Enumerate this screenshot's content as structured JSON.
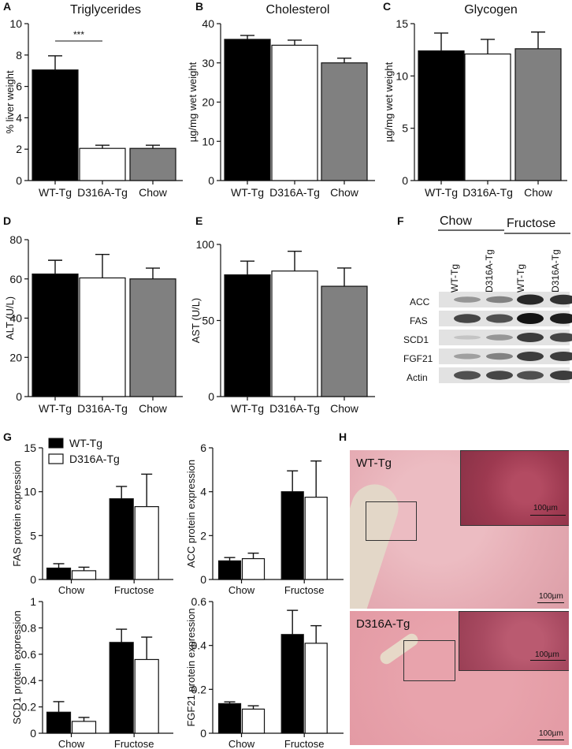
{
  "panel_letters": [
    "A",
    "B",
    "C",
    "D",
    "E",
    "F",
    "G",
    "H"
  ],
  "chart_data": [
    {
      "id": "A",
      "type": "bar",
      "title": "Triglycerides",
      "ylabel": "% liver weight",
      "categories": [
        "WT-Tg",
        "D316A-Tg",
        "Chow"
      ],
      "values": [
        7.05,
        2.05,
        2.05
      ],
      "errors": [
        0.9,
        0.2,
        0.2
      ],
      "ylim": [
        0,
        10
      ],
      "yticks": [
        0,
        2,
        4,
        6,
        8,
        10
      ],
      "colors": [
        "#000000",
        "#ffffff",
        "#808080"
      ],
      "annotation": "***"
    },
    {
      "id": "B",
      "type": "bar",
      "title": "Cholesterol",
      "ylabel": "µg/mg wet weight",
      "categories": [
        "WT-Tg",
        "D316A-Tg",
        "Chow"
      ],
      "values": [
        36,
        34.5,
        30
      ],
      "errors": [
        1.0,
        1.3,
        1.2
      ],
      "ylim": [
        0,
        40
      ],
      "yticks": [
        0,
        10,
        20,
        30,
        40
      ],
      "colors": [
        "#000000",
        "#ffffff",
        "#808080"
      ]
    },
    {
      "id": "C",
      "type": "bar",
      "title": "Glycogen",
      "ylabel": "µg/mg wet weight",
      "categories": [
        "WT-Tg",
        "D316A-Tg",
        "Chow"
      ],
      "values": [
        12.4,
        12.1,
        12.6
      ],
      "errors": [
        1.7,
        1.4,
        1.6
      ],
      "ylim": [
        0,
        15
      ],
      "yticks": [
        0,
        5,
        10,
        15
      ],
      "colors": [
        "#000000",
        "#ffffff",
        "#808080"
      ]
    },
    {
      "id": "D",
      "type": "bar",
      "title": "",
      "ylabel": "ALT (U/L)",
      "categories": [
        "WT-Tg",
        "D316A-Tg",
        "Chow"
      ],
      "values": [
        62.5,
        60.5,
        60
      ],
      "errors": [
        7,
        12,
        5.5
      ],
      "ylim": [
        0,
        80
      ],
      "yticks": [
        0,
        20,
        40,
        60,
        80
      ],
      "colors": [
        "#000000",
        "#ffffff",
        "#808080"
      ]
    },
    {
      "id": "E",
      "type": "bar",
      "title": "",
      "ylabel": "AST (U/L)",
      "categories": [
        "WT-Tg",
        "D316A-Tg",
        "Chow"
      ],
      "values": [
        80,
        82.5,
        72.5
      ],
      "errors": [
        9,
        13,
        12
      ],
      "ylim": [
        0,
        100
      ],
      "yticks": [
        0,
        50,
        100
      ],
      "colors": [
        "#000000",
        "#ffffff",
        "#808080"
      ]
    },
    {
      "id": "G1",
      "type": "bar",
      "ylabel": "FAS protein expression",
      "categories": [
        "Chow",
        "Fructose"
      ],
      "ylim": [
        0,
        15
      ],
      "yticks": [
        0,
        5,
        10,
        15
      ],
      "series": [
        {
          "name": "WT-Tg",
          "values": [
            1.3,
            9.2
          ],
          "errors": [
            0.5,
            1.4
          ],
          "color": "#000000"
        },
        {
          "name": "D316A-Tg",
          "values": [
            1.0,
            8.3
          ],
          "errors": [
            0.4,
            3.7
          ],
          "color": "#ffffff"
        }
      ]
    },
    {
      "id": "G2",
      "type": "bar",
      "ylabel": "ACC protein expression",
      "categories": [
        "Chow",
        "Fructose"
      ],
      "ylim": [
        0,
        6
      ],
      "yticks": [
        0,
        2,
        4,
        6
      ],
      "series": [
        {
          "name": "WT-Tg",
          "values": [
            0.85,
            4.0
          ],
          "errors": [
            0.15,
            0.95
          ],
          "color": "#000000"
        },
        {
          "name": "D316A-Tg",
          "values": [
            0.95,
            3.75
          ],
          "errors": [
            0.25,
            1.65
          ],
          "color": "#ffffff"
        }
      ]
    },
    {
      "id": "G3",
      "type": "bar",
      "ylabel": "SCD1 protein expression",
      "categories": [
        "Chow",
        "Fructose"
      ],
      "ylim": [
        0,
        1.0
      ],
      "yticks": [
        0.0,
        0.2,
        0.4,
        0.6,
        0.8,
        1.0
      ],
      "series": [
        {
          "name": "WT-Tg",
          "values": [
            0.16,
            0.69
          ],
          "errors": [
            0.08,
            0.1
          ],
          "color": "#000000"
        },
        {
          "name": "D316A-Tg",
          "values": [
            0.09,
            0.56
          ],
          "errors": [
            0.03,
            0.17
          ],
          "color": "#ffffff"
        }
      ]
    },
    {
      "id": "G4",
      "type": "bar",
      "ylabel": "FGF21 protein expression",
      "categories": [
        "Chow",
        "Fructose"
      ],
      "ylim": [
        0,
        0.6
      ],
      "yticks": [
        0.0,
        0.2,
        0.4,
        0.6
      ],
      "series": [
        {
          "name": "WT-Tg",
          "values": [
            0.135,
            0.45
          ],
          "errors": [
            0.008,
            0.11
          ],
          "color": "#000000"
        },
        {
          "name": "D316A-Tg",
          "values": [
            0.11,
            0.41
          ],
          "errors": [
            0.015,
            0.08
          ],
          "color": "#ffffff"
        }
      ]
    }
  ],
  "legend_G": [
    "WT-Tg",
    "D316A-Tg"
  ],
  "blot": {
    "groups": [
      "Chow",
      "Fructose"
    ],
    "lanes": [
      "WT-Tg",
      "D316A-Tg",
      "WT-Tg",
      "D316A-Tg"
    ],
    "rows": [
      "ACC",
      "FAS",
      "SCD1",
      "FGF21",
      "Actin"
    ],
    "intensity": [
      [
        0.35,
        0.45,
        0.9,
        0.85
      ],
      [
        0.75,
        0.7,
        1.0,
        0.95
      ],
      [
        0.12,
        0.35,
        0.8,
        0.75
      ],
      [
        0.3,
        0.45,
        0.8,
        0.8
      ],
      [
        0.7,
        0.75,
        0.7,
        0.8
      ]
    ]
  },
  "histology": {
    "labels": [
      "WT-Tg",
      "D316A-Tg"
    ],
    "scale": "100µm"
  }
}
